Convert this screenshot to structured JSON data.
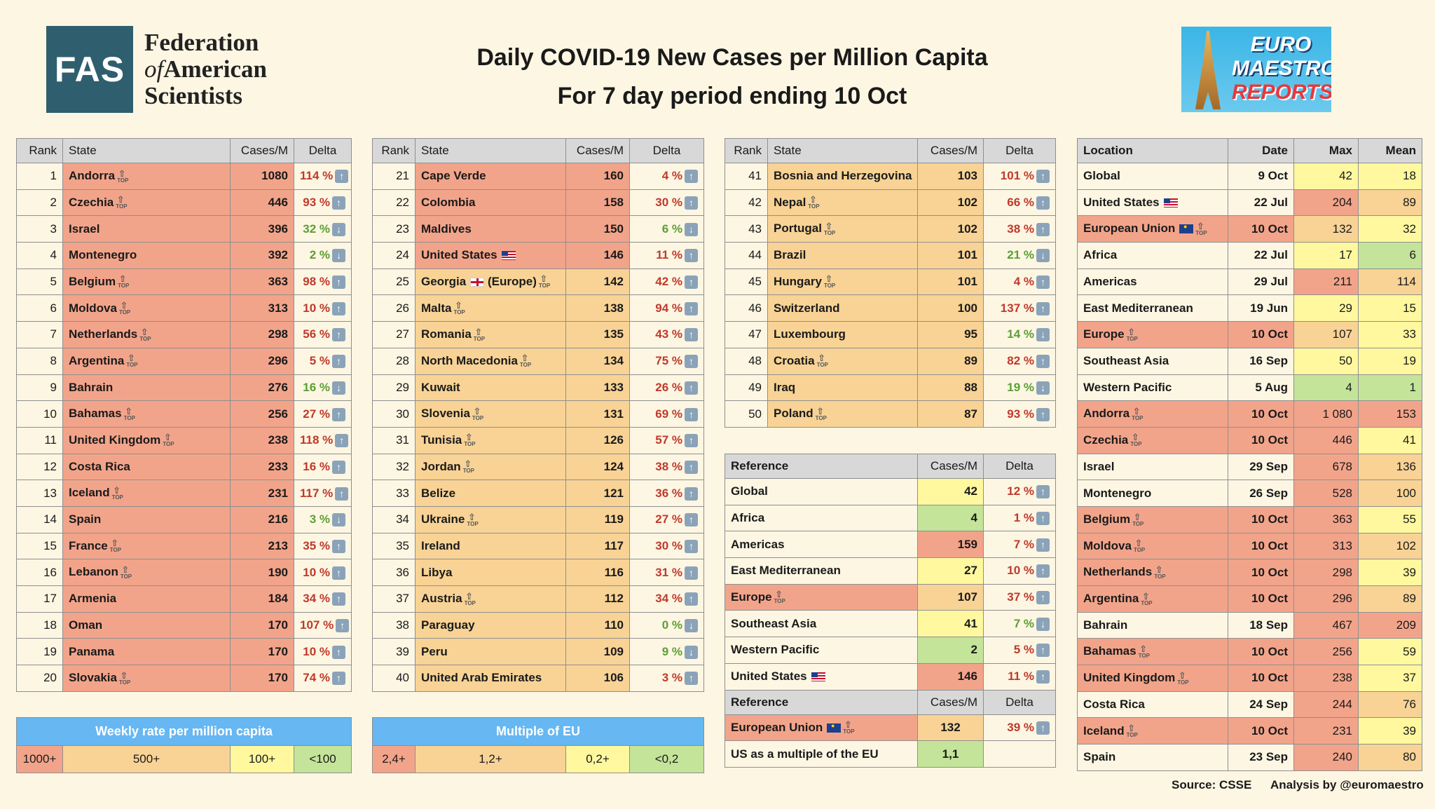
{
  "header": {
    "fas_abbr": "FAS",
    "fas_line1": "Federation",
    "fas_line2_prefix": "of",
    "fas_line2_rest": "American",
    "fas_line3": "Scientists",
    "title_line1": "Daily COVID-19 New Cases per Million Capita",
    "title_line2": "For 7 day period ending 10 Oct",
    "euro_line1": "EURO",
    "euro_line2": "MAESTRO",
    "euro_line3": "REPORTS"
  },
  "columns": {
    "rank": "Rank",
    "state": "State",
    "cases": "Cases/M",
    "delta": "Delta"
  },
  "top_mark": "TOP",
  "colors": {
    "red": "#f2a48a",
    "orange": "#f8d395",
    "yellow": "#fff89e",
    "green": "#c4e49a",
    "legend_header": "#66b7f2"
  },
  "table1": [
    {
      "rank": "1",
      "state": "Andorra",
      "top": true,
      "cases": "1080",
      "delta": "114 %",
      "dir": "up",
      "color": "r1"
    },
    {
      "rank": "2",
      "state": "Czechia",
      "top": true,
      "cases": "446",
      "delta": "93 %",
      "dir": "up",
      "color": "r1"
    },
    {
      "rank": "3",
      "state": "Israel",
      "cases": "396",
      "delta": "32 %",
      "dir": "down",
      "color": "r1"
    },
    {
      "rank": "4",
      "state": "Montenegro",
      "cases": "392",
      "delta": "2 %",
      "dir": "down",
      "color": "r1"
    },
    {
      "rank": "5",
      "state": "Belgium",
      "top": true,
      "cases": "363",
      "delta": "98 %",
      "dir": "up",
      "color": "r1"
    },
    {
      "rank": "6",
      "state": "Moldova",
      "top": true,
      "cases": "313",
      "delta": "10 %",
      "dir": "up",
      "color": "r1"
    },
    {
      "rank": "7",
      "state": "Netherlands",
      "top": true,
      "cases": "298",
      "delta": "56 %",
      "dir": "up",
      "color": "r1"
    },
    {
      "rank": "8",
      "state": "Argentina",
      "top": true,
      "cases": "296",
      "delta": "5 %",
      "dir": "up",
      "color": "r1"
    },
    {
      "rank": "9",
      "state": "Bahrain",
      "cases": "276",
      "delta": "16 %",
      "dir": "down",
      "color": "r1"
    },
    {
      "rank": "10",
      "state": "Bahamas",
      "top": true,
      "cases": "256",
      "delta": "27 %",
      "dir": "up",
      "color": "r1"
    },
    {
      "rank": "11",
      "state": "United Kingdom",
      "top": true,
      "cases": "238",
      "delta": "118 %",
      "dir": "up",
      "color": "r1"
    },
    {
      "rank": "12",
      "state": "Costa Rica",
      "cases": "233",
      "delta": "16 %",
      "dir": "up",
      "color": "r1"
    },
    {
      "rank": "13",
      "state": "Iceland",
      "top": true,
      "cases": "231",
      "delta": "117 %",
      "dir": "up",
      "color": "r1"
    },
    {
      "rank": "14",
      "state": "Spain",
      "cases": "216",
      "delta": "3 %",
      "dir": "down",
      "color": "r1"
    },
    {
      "rank": "15",
      "state": "France",
      "top": true,
      "cases": "213",
      "delta": "35 %",
      "dir": "up",
      "color": "r1"
    },
    {
      "rank": "16",
      "state": "Lebanon",
      "top": true,
      "cases": "190",
      "delta": "10 %",
      "dir": "up",
      "color": "r1"
    },
    {
      "rank": "17",
      "state": "Armenia",
      "cases": "184",
      "delta": "34 %",
      "dir": "up",
      "color": "r1"
    },
    {
      "rank": "18",
      "state": "Oman",
      "cases": "170",
      "delta": "107 %",
      "dir": "up",
      "color": "r1"
    },
    {
      "rank": "19",
      "state": "Panama",
      "cases": "170",
      "delta": "10 %",
      "dir": "up",
      "color": "r1"
    },
    {
      "rank": "20",
      "state": "Slovakia",
      "top": true,
      "cases": "170",
      "delta": "74 %",
      "dir": "up",
      "color": "r1"
    }
  ],
  "table2": [
    {
      "rank": "21",
      "state": "Cape Verde",
      "cases": "160",
      "delta": "4 %",
      "dir": "up",
      "color": "r1"
    },
    {
      "rank": "22",
      "state": "Colombia",
      "cases": "158",
      "delta": "30 %",
      "dir": "up",
      "color": "r1"
    },
    {
      "rank": "23",
      "state": "Maldives",
      "cases": "150",
      "delta": "6 %",
      "dir": "down",
      "color": "r1"
    },
    {
      "rank": "24",
      "state": "United States",
      "flag": "us",
      "cases": "146",
      "delta": "11 %",
      "dir": "up",
      "color": "r1"
    },
    {
      "rank": "25",
      "state": "Georgia",
      "flag": "uk",
      "suffix": "(Europe)",
      "top": true,
      "cases": "142",
      "delta": "42 %",
      "dir": "up",
      "color": "r2"
    },
    {
      "rank": "26",
      "state": "Malta",
      "top": true,
      "cases": "138",
      "delta": "94 %",
      "dir": "up",
      "color": "r2"
    },
    {
      "rank": "27",
      "state": "Romania",
      "top": true,
      "cases": "135",
      "delta": "43 %",
      "dir": "up",
      "color": "r2"
    },
    {
      "rank": "28",
      "state": "North Macedonia",
      "top": true,
      "cases": "134",
      "delta": "75 %",
      "dir": "up",
      "color": "r2"
    },
    {
      "rank": "29",
      "state": "Kuwait",
      "cases": "133",
      "delta": "26 %",
      "dir": "up",
      "color": "r2"
    },
    {
      "rank": "30",
      "state": "Slovenia",
      "top": true,
      "cases": "131",
      "delta": "69 %",
      "dir": "up",
      "color": "r2"
    },
    {
      "rank": "31",
      "state": "Tunisia",
      "top": true,
      "cases": "126",
      "delta": "57 %",
      "dir": "up",
      "color": "r2"
    },
    {
      "rank": "32",
      "state": "Jordan",
      "top": true,
      "cases": "124",
      "delta": "38 %",
      "dir": "up",
      "color": "r2"
    },
    {
      "rank": "33",
      "state": "Belize",
      "cases": "121",
      "delta": "36 %",
      "dir": "up",
      "color": "r2"
    },
    {
      "rank": "34",
      "state": "Ukraine",
      "top": true,
      "cases": "119",
      "delta": "27 %",
      "dir": "up",
      "color": "r2"
    },
    {
      "rank": "35",
      "state": "Ireland",
      "cases": "117",
      "delta": "30 %",
      "dir": "up",
      "color": "r2"
    },
    {
      "rank": "36",
      "state": "Libya",
      "cases": "116",
      "delta": "31 %",
      "dir": "up",
      "color": "r2"
    },
    {
      "rank": "37",
      "state": "Austria",
      "top": true,
      "cases": "112",
      "delta": "34 %",
      "dir": "up",
      "color": "r2"
    },
    {
      "rank": "38",
      "state": "Paraguay",
      "cases": "110",
      "delta": "0 %",
      "dir": "down",
      "color": "r2"
    },
    {
      "rank": "39",
      "state": "Peru",
      "cases": "109",
      "delta": "9 %",
      "dir": "down",
      "color": "r2"
    },
    {
      "rank": "40",
      "state": "United Arab Emirates",
      "cases": "106",
      "delta": "3 %",
      "dir": "up",
      "color": "r2"
    }
  ],
  "table3": [
    {
      "rank": "41",
      "state": "Bosnia and Herzegovina",
      "cases": "103",
      "delta": "101 %",
      "dir": "up",
      "color": "r2"
    },
    {
      "rank": "42",
      "state": "Nepal",
      "top": true,
      "cases": "102",
      "delta": "66 %",
      "dir": "up",
      "color": "r2"
    },
    {
      "rank": "43",
      "state": "Portugal",
      "top": true,
      "cases": "102",
      "delta": "38 %",
      "dir": "up",
      "color": "r2"
    },
    {
      "rank": "44",
      "state": "Brazil",
      "cases": "101",
      "delta": "21 %",
      "dir": "down",
      "color": "r2"
    },
    {
      "rank": "45",
      "state": "Hungary",
      "top": true,
      "cases": "101",
      "delta": "4 %",
      "dir": "up",
      "color": "r2"
    },
    {
      "rank": "46",
      "state": "Switzerland",
      "cases": "100",
      "delta": "137 %",
      "dir": "up",
      "color": "r2"
    },
    {
      "rank": "47",
      "state": "Luxembourg",
      "cases": "95",
      "delta": "14 %",
      "dir": "down",
      "color": "r2"
    },
    {
      "rank": "48",
      "state": "Croatia",
      "top": true,
      "cases": "89",
      "delta": "82 %",
      "dir": "up",
      "color": "r2"
    },
    {
      "rank": "49",
      "state": "Iraq",
      "cases": "88",
      "delta": "19 %",
      "dir": "down",
      "color": "r2"
    },
    {
      "rank": "50",
      "state": "Poland",
      "top": true,
      "cases": "87",
      "delta": "93 %",
      "dir": "up",
      "color": "r2"
    }
  ],
  "reference": {
    "header": "Reference",
    "rows": [
      {
        "state": "Global",
        "cases": "42",
        "delta": "12 %",
        "dir": "up",
        "color": "r3"
      },
      {
        "state": "Africa",
        "cases": "4",
        "delta": "1 %",
        "dir": "up",
        "color": "r4"
      },
      {
        "state": "Americas",
        "cases": "159",
        "delta": "7 %",
        "dir": "up",
        "color": "r1"
      },
      {
        "state": "East Mediterranean",
        "cases": "27",
        "delta": "10 %",
        "dir": "up",
        "color": "r3"
      },
      {
        "state": "Europe",
        "top": true,
        "cases": "107",
        "delta": "37 %",
        "dir": "up",
        "color": "r2"
      },
      {
        "state": "Southeast Asia",
        "cases": "41",
        "delta": "7 %",
        "dir": "down",
        "color": "r3"
      },
      {
        "state": "Western Pacific",
        "cases": "2",
        "delta": "5 %",
        "dir": "up",
        "color": "r4"
      },
      {
        "state": "United States",
        "flag": "us",
        "cases": "146",
        "delta": "11 %",
        "dir": "up",
        "color": "r1"
      }
    ],
    "eu_header": "Reference",
    "eu_row": {
      "state": "European Union",
      "flag": "eu",
      "top": true,
      "cases": "132",
      "delta": "39 %",
      "dir": "up"
    },
    "mult_label": "US as a multiple of the EU",
    "mult_value": "1,1"
  },
  "location_table": {
    "headers": {
      "location": "Location",
      "date": "Date",
      "max": "Max",
      "mean": "Mean"
    },
    "rows": [
      {
        "loc": "Global",
        "date": "9 Oct",
        "max": "42",
        "mean": "18",
        "cmax": "r3",
        "cmean": "r3"
      },
      {
        "loc": "United States",
        "flag": "us",
        "date": "22 Jul",
        "max": "204",
        "mean": "89",
        "cmax": "r1",
        "cmean": "r2"
      },
      {
        "loc": "European Union",
        "flag": "eu",
        "top": true,
        "date": "10 Oct",
        "max": "132",
        "mean": "32",
        "cmax": "r2",
        "cmean": "r3",
        "rowcolor": "r1"
      },
      {
        "loc": "Africa",
        "date": "22 Jul",
        "max": "17",
        "mean": "6",
        "cmax": "r3",
        "cmean": "r4"
      },
      {
        "loc": "Americas",
        "date": "29 Jul",
        "max": "211",
        "mean": "114",
        "cmax": "r1",
        "cmean": "r2"
      },
      {
        "loc": "East Mediterranean",
        "date": "19 Jun",
        "max": "29",
        "mean": "15",
        "cmax": "r3",
        "cmean": "r3"
      },
      {
        "loc": "Europe",
        "top": true,
        "date": "10 Oct",
        "max": "107",
        "mean": "33",
        "cmax": "r2",
        "cmean": "r3",
        "rowcolor": "r1"
      },
      {
        "loc": "Southeast Asia",
        "date": "16 Sep",
        "max": "50",
        "mean": "19",
        "cmax": "r3",
        "cmean": "r3"
      },
      {
        "loc": "Western Pacific",
        "date": "5 Aug",
        "max": "4",
        "mean": "1",
        "cmax": "r4",
        "cmean": "r4"
      },
      {
        "loc": "Andorra",
        "top": true,
        "date": "10 Oct",
        "max": "1 080",
        "mean": "153",
        "cmax": "r1",
        "cmean": "r1",
        "rowcolor": "r1"
      },
      {
        "loc": "Czechia",
        "top": true,
        "date": "10 Oct",
        "max": "446",
        "mean": "41",
        "cmax": "r1",
        "cmean": "r3",
        "rowcolor": "r1"
      },
      {
        "loc": "Israel",
        "date": "29 Sep",
        "max": "678",
        "mean": "136",
        "cmax": "r1",
        "cmean": "r2"
      },
      {
        "loc": "Montenegro",
        "date": "26 Sep",
        "max": "528",
        "mean": "100",
        "cmax": "r1",
        "cmean": "r2"
      },
      {
        "loc": "Belgium",
        "top": true,
        "date": "10 Oct",
        "max": "363",
        "mean": "55",
        "cmax": "r1",
        "cmean": "r3",
        "rowcolor": "r1"
      },
      {
        "loc": "Moldova",
        "top": true,
        "date": "10 Oct",
        "max": "313",
        "mean": "102",
        "cmax": "r1",
        "cmean": "r2",
        "rowcolor": "r1"
      },
      {
        "loc": "Netherlands",
        "top": true,
        "date": "10 Oct",
        "max": "298",
        "mean": "39",
        "cmax": "r1",
        "cmean": "r3",
        "rowcolor": "r1"
      },
      {
        "loc": "Argentina",
        "top": true,
        "date": "10 Oct",
        "max": "296",
        "mean": "89",
        "cmax": "r1",
        "cmean": "r2",
        "rowcolor": "r1"
      },
      {
        "loc": "Bahrain",
        "date": "18 Sep",
        "max": "467",
        "mean": "209",
        "cmax": "r1",
        "cmean": "r1"
      },
      {
        "loc": "Bahamas",
        "top": true,
        "date": "10 Oct",
        "max": "256",
        "mean": "59",
        "cmax": "r1",
        "cmean": "r3",
        "rowcolor": "r1"
      },
      {
        "loc": "United Kingdom",
        "top": true,
        "date": "10 Oct",
        "max": "238",
        "mean": "37",
        "cmax": "r1",
        "cmean": "r3",
        "rowcolor": "r1"
      },
      {
        "loc": "Costa Rica",
        "date": "24 Sep",
        "max": "244",
        "mean": "76",
        "cmax": "r1",
        "cmean": "r2"
      },
      {
        "loc": "Iceland",
        "top": true,
        "date": "10 Oct",
        "max": "231",
        "mean": "39",
        "cmax": "r1",
        "cmean": "r3",
        "rowcolor": "r1"
      },
      {
        "loc": "Spain",
        "date": "23 Sep",
        "max": "240",
        "mean": "80",
        "cmax": "r1",
        "cmean": "r2"
      }
    ]
  },
  "legend1": {
    "title": "Weekly rate per million capita",
    "items": [
      "1000+",
      "500+",
      "100+",
      "<100"
    ]
  },
  "legend2": {
    "title": "Multiple of EU",
    "items": [
      "2,4+",
      "1,2+",
      "0,2+",
      "<0,2"
    ]
  },
  "footer": {
    "source": "Source: CSSE",
    "analysis": "Analysis by @euromaestro"
  }
}
